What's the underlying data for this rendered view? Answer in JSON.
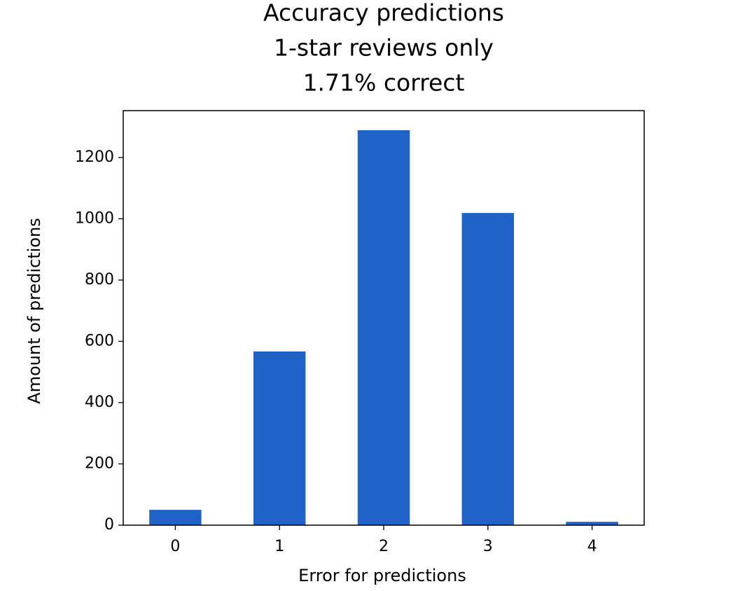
{
  "chart_data": {
    "type": "bar",
    "title": [
      "Accuracy predictions",
      "1-star reviews only",
      "1.71% correct"
    ],
    "x_label": "Error for predictions",
    "y_label": "Amount of predictions",
    "categories": [
      "0",
      "1",
      "2",
      "3",
      "4"
    ],
    "values": [
      50,
      567,
      1289,
      1019,
      11
    ],
    "color": "#1f63c6",
    "ylim": [
      0,
      1353
    ],
    "yticks": [
      0,
      200,
      400,
      600,
      800,
      1000,
      1200
    ],
    "grid": false
  }
}
